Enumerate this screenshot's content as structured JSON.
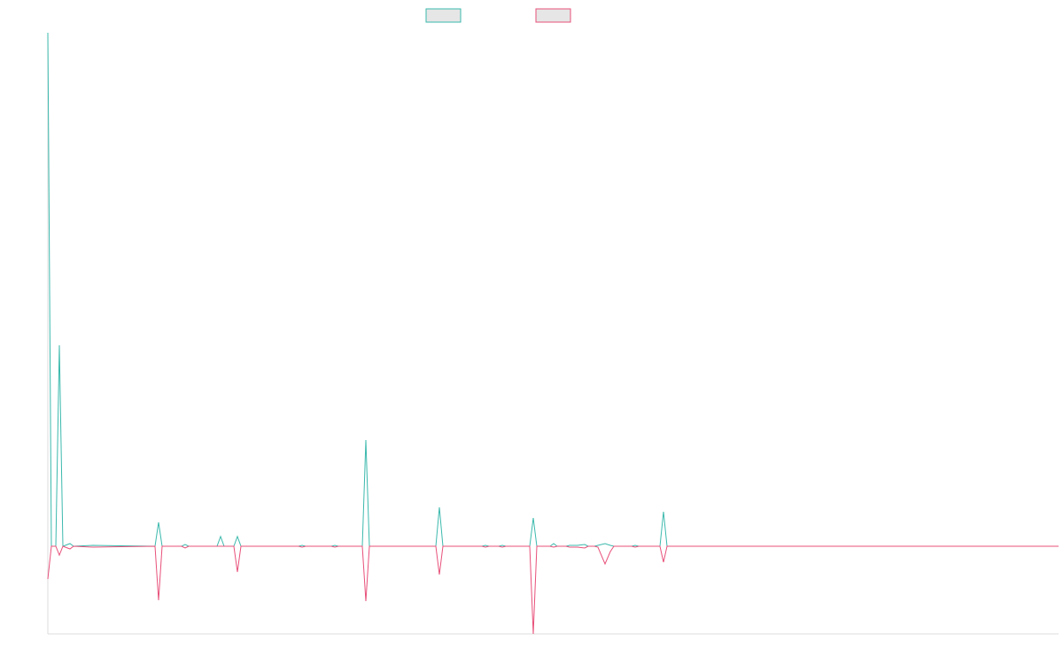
{
  "chart_data": {
    "type": "line",
    "x": [
      0,
      4,
      9,
      13,
      17,
      25,
      29,
      51,
      121,
      125,
      129,
      151,
      155,
      159,
      191,
      195,
      199,
      210,
      214,
      218,
      283,
      287,
      291,
      320,
      324,
      328,
      355,
      359,
      363,
      438,
      442,
      446,
      490,
      494,
      498,
      509,
      513,
      517,
      544,
      548,
      552,
      567,
      571,
      575,
      585,
      589,
      598,
      606,
      610,
      617,
      621,
      629,
      635,
      639,
      659,
      663,
      667,
      691,
      695,
      699,
      1141
    ],
    "series": [
      {
        "color": "#3bb9ad",
        "values": [
          580,
          0,
          0,
          227,
          0,
          3,
          0,
          1,
          0,
          27,
          0,
          0,
          2,
          0,
          0,
          11,
          0,
          0,
          11,
          0,
          0,
          1,
          0,
          0,
          1,
          0,
          0,
          120,
          0,
          0,
          44,
          0,
          0,
          1,
          0,
          0,
          1,
          0,
          0,
          32,
          0,
          0,
          3,
          0,
          0,
          1,
          1,
          2,
          0,
          0,
          1,
          3,
          1,
          0,
          0,
          1,
          0,
          0,
          39,
          0,
          0
        ]
      },
      {
        "color": "#e8507a",
        "values": [
          -37,
          0,
          0,
          -10,
          0,
          -3,
          0,
          -1,
          0,
          -61,
          0,
          0,
          -2,
          0,
          0,
          0,
          0,
          0,
          -29,
          0,
          0,
          -1,
          0,
          0,
          -1,
          0,
          0,
          -62,
          0,
          0,
          -32,
          0,
          0,
          -1,
          0,
          0,
          -1,
          0,
          0,
          -99,
          0,
          0,
          -1,
          0,
          0,
          -1,
          -1,
          -2,
          0,
          0,
          -1,
          -20,
          -6,
          0,
          0,
          -1,
          0,
          0,
          -18,
          0,
          0
        ]
      }
    ],
    "xlim": [
      0,
      1141
    ],
    "ylim": [
      -99,
      580
    ]
  }
}
